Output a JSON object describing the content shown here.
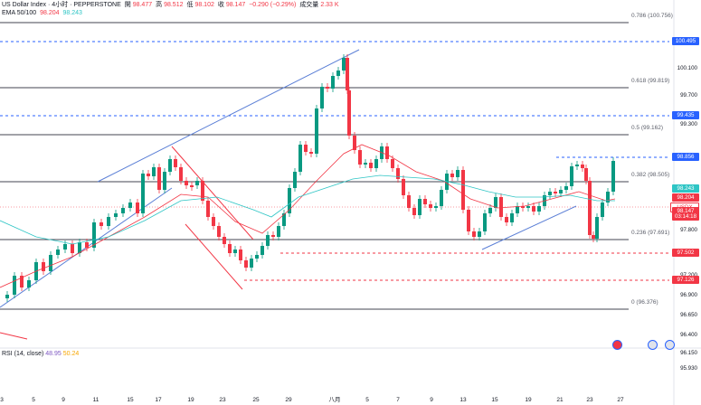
{
  "header": {
    "symbol": "US Dollar Index · 4小时 · PEPPERSTONE",
    "open_label": "開",
    "open": "98.477",
    "high_label": "高",
    "high": "98.512",
    "low_label": "低",
    "low": "98.102",
    "close_label": "收",
    "close": "98.147",
    "change": "−0.290 (−0.29%)",
    "volume_label": "成交量",
    "volume": "2.33 K",
    "ema_label": "EMA 50/100",
    "ema50": "98.204",
    "ema100": "98.243"
  },
  "fib_levels": [
    {
      "label": "0.786 (100.756)",
      "price": 100.756
    },
    {
      "label": "0.618 (99.819)",
      "price": 99.819
    },
    {
      "label": "0.5 (99.162)",
      "price": 99.162
    },
    {
      "label": "0.382 (98.505)",
      "price": 98.505
    },
    {
      "label": "0.236 (97.691)",
      "price": 97.691
    },
    {
      "label": "0 (96.376)",
      "price": 96.376
    }
  ],
  "price_axis": {
    "ticks": [
      "100.500",
      "100.100",
      "99.700",
      "99.300",
      "98.500",
      "97.800",
      "97.200",
      "96.900",
      "96.650",
      "96.400",
      "96.150",
      "95.930"
    ],
    "tick_values": [
      100.5,
      100.1,
      99.7,
      99.3,
      98.5,
      97.8,
      97.2,
      96.9,
      96.65,
      96.4,
      96.15,
      95.93
    ]
  },
  "price_boxes": [
    {
      "text": "100.495",
      "price": 100.495,
      "color": "#2962ff",
      "bg": "#2962ff"
    },
    {
      "text": "99.435",
      "price": 99.435,
      "color": "#2962ff",
      "bg": "#2962ff"
    },
    {
      "text": "98.856",
      "price": 98.856,
      "color": "#2962ff",
      "bg": "#2962ff"
    },
    {
      "text": "98.243",
      "price": 98.3,
      "color": "#2ec5c5",
      "bg": "#2ec5c5"
    },
    {
      "text": "98.204",
      "price": 98.2,
      "color": "#f23645",
      "bg": "#f23645"
    },
    {
      "text": "USDX",
      "price": 98.1,
      "color": "#f23645",
      "bg": "#ffffff"
    },
    {
      "text": "98.147",
      "price": 98.147,
      "color": "#f23645",
      "bg": "#f23645"
    },
    {
      "text": "03:14:18",
      "price": 98.05,
      "color": "#f23645",
      "bg": "#f23645"
    },
    {
      "text": "97.502",
      "price": 97.502,
      "color": "#f23645",
      "bg": "#f23645"
    },
    {
      "text": "97.126",
      "price": 97.126,
      "color": "#f23645",
      "bg": "#f23645"
    }
  ],
  "x_axis": {
    "labels": [
      "3",
      "5",
      "9",
      "11",
      "15",
      "17",
      "19",
      "23",
      "25",
      "29",
      "八月",
      "5",
      "7",
      "9",
      "13",
      "15",
      "19",
      "21",
      "23",
      "27"
    ]
  },
  "rsi": {
    "label": "RSI (14, close)",
    "value1": "48.95",
    "value2": "50.24"
  },
  "colors": {
    "up": "#089981",
    "down": "#f23645",
    "trendline": "#5b7fd6",
    "ema50": "#f23645",
    "ema100": "#2ec5c5",
    "hline_blue": "#2962ff"
  }
}
